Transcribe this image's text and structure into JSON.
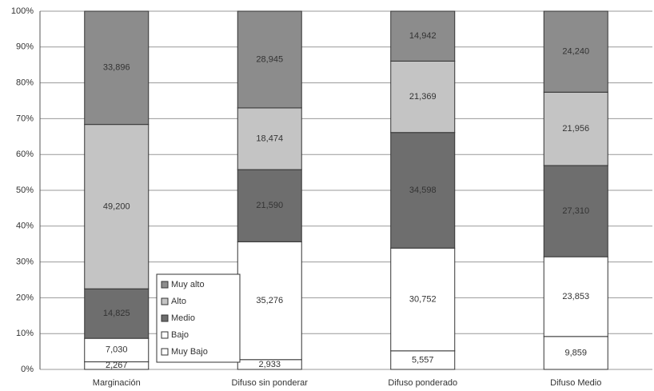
{
  "chart_data": {
    "type": "stacked_percent_bar",
    "categories": [
      "Marginación",
      "Difuso sin ponderar",
      "Difuso ponderado",
      "Difuso Medio"
    ],
    "series": [
      {
        "name": "Muy Bajo",
        "color": "#ffffff",
        "values": [
          2267,
          2933,
          5557,
          9859
        ],
        "value_labels": [
          "2,267",
          "2,933",
          "5,557",
          "9,859"
        ]
      },
      {
        "name": "Bajo",
        "color": "#ffffff",
        "values": [
          7030,
          35276,
          30752,
          23853
        ],
        "value_labels": [
          "7,030",
          "35,276",
          "30,752",
          "23,853"
        ]
      },
      {
        "name": "Medio",
        "color": "#6e6e6e",
        "values": [
          14825,
          21590,
          34598,
          27310
        ],
        "value_labels": [
          "14,825",
          "21,590",
          "34,598",
          "27,310"
        ]
      },
      {
        "name": "Alto",
        "color": "#c4c4c4",
        "values": [
          49200,
          18474,
          21369,
          21956
        ],
        "value_labels": [
          "49,200",
          "18,474",
          "21,369",
          "21,956"
        ]
      },
      {
        "name": "Muy alto",
        "color": "#8c8c8c",
        "values": [
          33896,
          28945,
          14942,
          24240
        ],
        "value_labels": [
          "33,896",
          "28,945",
          "14,942",
          "24,240"
        ]
      }
    ],
    "ylim": [
      0,
      100
    ],
    "yticks": [
      {
        "value": 0,
        "label": "0%"
      },
      {
        "value": 10,
        "label": "10%"
      },
      {
        "value": 20,
        "label": "20%"
      },
      {
        "value": 30,
        "label": "30%"
      },
      {
        "value": 40,
        "label": "40%"
      },
      {
        "value": 50,
        "label": "50%"
      },
      {
        "value": 60,
        "label": "60%"
      },
      {
        "value": 70,
        "label": "70%"
      },
      {
        "value": 80,
        "label": "80%"
      },
      {
        "value": 90,
        "label": "90%"
      },
      {
        "value": 100,
        "label": "100%"
      }
    ],
    "grid": true,
    "legend": "lower-left"
  }
}
